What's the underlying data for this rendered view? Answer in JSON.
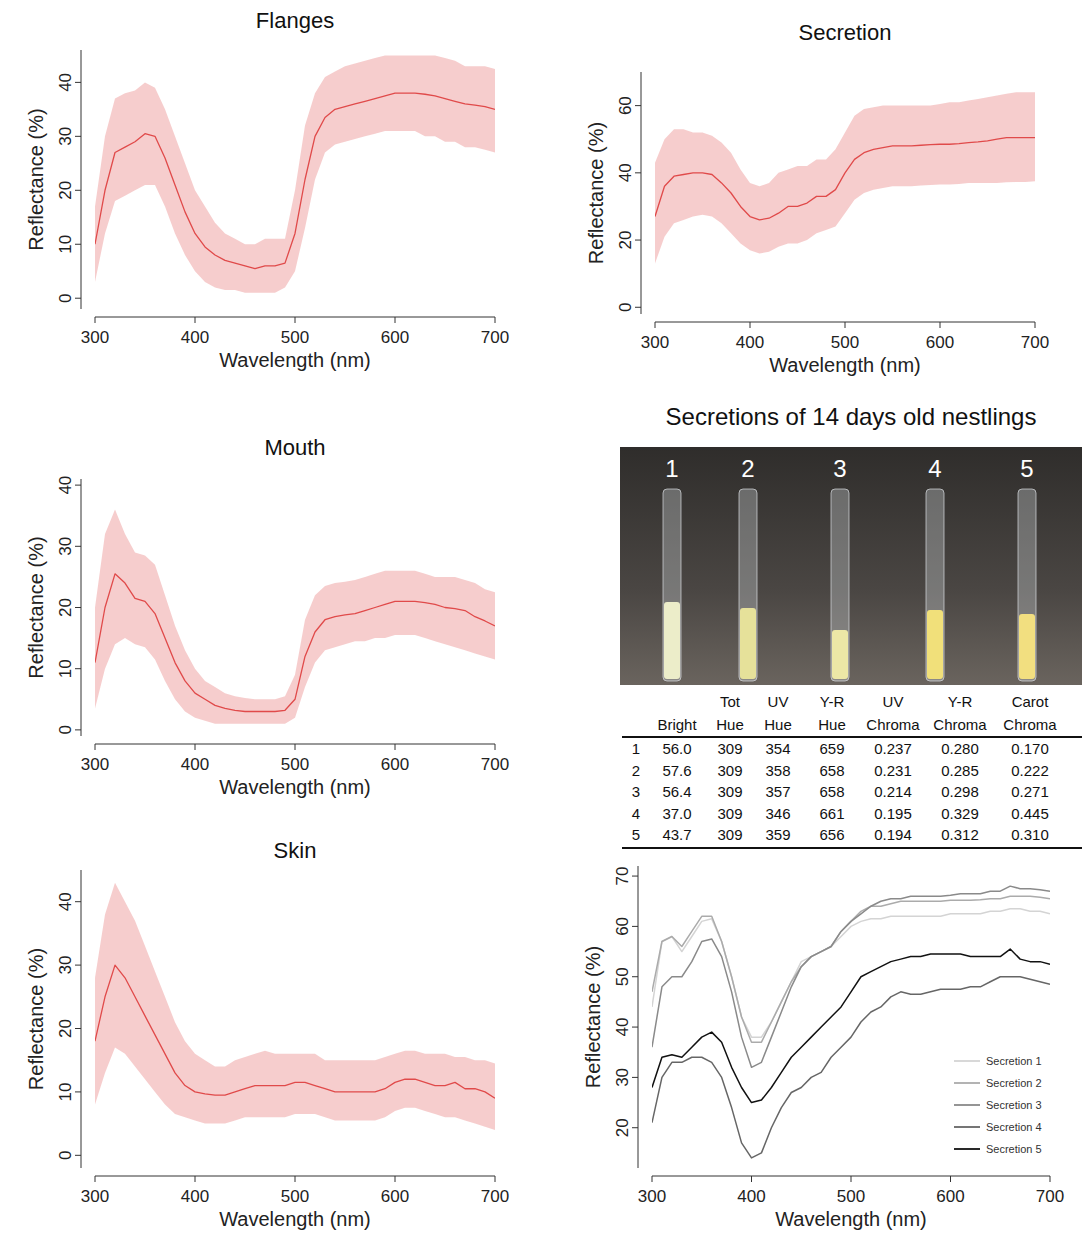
{
  "chart_data": [
    {
      "type": "line",
      "title": "Flanges",
      "x_label": "Wavelength (nm)",
      "y_label": "Reflectance (%)",
      "x": [
        300,
        310,
        320,
        330,
        340,
        350,
        360,
        370,
        380,
        390,
        400,
        410,
        420,
        430,
        440,
        450,
        460,
        470,
        480,
        490,
        500,
        510,
        520,
        530,
        540,
        550,
        560,
        570,
        580,
        590,
        600,
        610,
        620,
        630,
        640,
        650,
        660,
        670,
        680,
        690,
        700
      ],
      "xlim": [
        300,
        700
      ],
      "xticks": [
        300,
        400,
        500,
        600,
        700
      ],
      "ylim": [
        -2,
        46
      ],
      "yticks": [
        0,
        10,
        20,
        30,
        40
      ],
      "series": [
        {
          "color": "#e04a4a",
          "values": [
            10,
            20,
            27,
            28,
            29,
            30.5,
            30,
            26,
            21,
            16,
            12,
            9.5,
            8,
            7,
            6.5,
            6,
            5.5,
            6,
            6,
            6.5,
            12,
            22,
            30,
            33.5,
            35,
            35.5,
            36,
            36.5,
            37,
            37.5,
            38,
            38,
            38,
            37.8,
            37.5,
            37,
            36.5,
            36,
            35.8,
            35.5,
            35
          ],
          "upper": [
            17,
            30,
            37,
            38,
            38.5,
            40,
            39,
            35,
            30,
            25,
            20,
            17,
            14,
            12,
            11,
            10,
            10,
            11,
            11,
            11,
            20,
            32,
            38,
            41,
            42,
            43,
            43.5,
            44,
            44.5,
            45,
            45,
            45,
            45,
            45,
            45,
            44.5,
            44,
            43,
            43,
            43,
            42.5
          ],
          "lower": [
            3,
            12,
            18,
            19,
            20,
            21,
            21,
            17,
            12,
            8,
            5,
            3,
            2,
            1.5,
            1.5,
            1,
            1,
            1,
            1,
            2,
            5,
            13,
            22,
            27,
            28.5,
            29,
            29.5,
            30,
            30.5,
            31,
            31,
            31,
            31,
            30,
            30,
            29,
            29,
            28,
            28,
            27.5,
            27
          ]
        }
      ]
    },
    {
      "type": "line",
      "title": "Secretion",
      "x_label": "Wavelength (nm)",
      "y_label": "Reflectance (%)",
      "x": [
        300,
        310,
        320,
        330,
        340,
        350,
        360,
        370,
        380,
        390,
        400,
        410,
        420,
        430,
        440,
        450,
        460,
        470,
        480,
        490,
        500,
        510,
        520,
        530,
        540,
        550,
        560,
        570,
        580,
        590,
        600,
        610,
        620,
        630,
        640,
        650,
        660,
        670,
        680,
        690,
        700
      ],
      "xlim": [
        300,
        700
      ],
      "xticks": [
        300,
        400,
        500,
        600,
        700
      ],
      "ylim": [
        -2,
        70
      ],
      "yticks": [
        0,
        20,
        40,
        60
      ],
      "series": [
        {
          "color": "#e04a4a",
          "values": [
            27,
            36,
            39,
            39.5,
            40,
            40,
            39.5,
            37,
            34,
            30,
            27,
            26,
            26.5,
            28,
            30,
            30,
            31,
            33,
            33,
            35,
            40,
            44,
            46,
            47,
            47.5,
            48,
            48,
            48,
            48.2,
            48.4,
            48.5,
            48.5,
            48.7,
            49,
            49.2,
            49.5,
            50,
            50.5,
            50.5,
            50.5,
            50.5
          ],
          "upper": [
            43,
            50,
            53,
            53,
            52,
            52,
            51,
            49,
            46,
            41,
            37,
            36,
            37,
            40,
            41,
            42,
            42,
            44,
            44,
            47,
            52,
            57,
            59,
            59.5,
            60,
            60,
            60,
            60,
            60,
            60,
            60.5,
            61,
            61,
            61.5,
            62,
            62.5,
            63,
            63.5,
            64,
            64,
            64
          ],
          "lower": [
            13,
            21,
            25,
            26,
            27,
            27.5,
            27,
            25,
            22,
            19,
            17,
            16,
            16.5,
            18,
            19,
            19,
            20,
            22,
            23,
            24,
            28,
            32,
            34,
            35,
            35.5,
            36,
            36,
            36,
            36.2,
            36.4,
            36.5,
            36.5,
            36.7,
            37,
            37,
            37,
            37,
            37.2,
            37.3,
            37.3,
            37.5
          ]
        }
      ]
    },
    {
      "type": "line",
      "title": "Mouth",
      "x_label": "Wavelength (nm)",
      "y_label": "Reflectance (%)",
      "x": [
        300,
        310,
        320,
        330,
        340,
        350,
        360,
        370,
        380,
        390,
        400,
        410,
        420,
        430,
        440,
        450,
        460,
        470,
        480,
        490,
        500,
        510,
        520,
        530,
        540,
        550,
        560,
        570,
        580,
        590,
        600,
        610,
        620,
        630,
        640,
        650,
        660,
        670,
        680,
        690,
        700
      ],
      "xlim": [
        300,
        700
      ],
      "xticks": [
        300,
        400,
        500,
        600,
        700
      ],
      "ylim": [
        -1,
        41
      ],
      "yticks": [
        0,
        10,
        20,
        30,
        40
      ],
      "series": [
        {
          "color": "#e04a4a",
          "values": [
            11,
            20,
            25.5,
            24,
            21.5,
            21,
            19,
            15,
            11,
            8,
            6,
            5,
            4,
            3.5,
            3.2,
            3,
            3,
            3,
            3,
            3.2,
            5,
            12,
            16,
            18,
            18.5,
            18.8,
            19,
            19.5,
            20,
            20.5,
            21,
            21,
            21,
            20.8,
            20.5,
            20,
            19.8,
            19.5,
            18.5,
            17.8,
            17
          ],
          "upper": [
            20,
            32,
            36,
            32,
            29,
            28.5,
            27,
            22,
            17,
            13,
            10,
            8,
            7,
            6,
            5.5,
            5.2,
            5,
            5,
            5,
            5.5,
            9,
            18,
            22,
            23.5,
            24,
            24.2,
            24.5,
            25,
            25.5,
            26,
            26,
            26,
            26,
            25.5,
            25,
            25,
            25,
            24.5,
            24,
            23,
            22.5
          ],
          "lower": [
            3.5,
            10,
            14,
            15,
            14,
            13.5,
            11.5,
            8,
            5,
            3,
            2,
            1.5,
            1,
            1,
            1,
            1,
            1,
            1,
            1,
            1,
            2,
            7,
            11,
            13,
            13.5,
            14,
            14.5,
            14.5,
            15,
            15,
            15.5,
            15.5,
            15.5,
            15,
            14.5,
            14,
            13.5,
            13,
            12.5,
            12,
            11.5
          ]
        }
      ]
    },
    {
      "type": "line",
      "title": "Skin",
      "x_label": "Wavelength (nm)",
      "y_label": "Reflectance (%)",
      "x": [
        300,
        310,
        320,
        330,
        340,
        350,
        360,
        370,
        380,
        390,
        400,
        410,
        420,
        430,
        440,
        450,
        460,
        470,
        480,
        490,
        500,
        510,
        520,
        530,
        540,
        550,
        560,
        570,
        580,
        590,
        600,
        610,
        620,
        630,
        640,
        650,
        660,
        670,
        680,
        690,
        700
      ],
      "xlim": [
        300,
        700
      ],
      "xticks": [
        300,
        400,
        500,
        600,
        700
      ],
      "ylim": [
        -2,
        45
      ],
      "yticks": [
        0,
        10,
        20,
        30,
        40
      ],
      "series": [
        {
          "color": "#e04a4a",
          "values": [
            18,
            25,
            30,
            28,
            25,
            22,
            19,
            16,
            13,
            11,
            10,
            9.7,
            9.5,
            9.5,
            10,
            10.5,
            11,
            11,
            11,
            11,
            11.5,
            11.5,
            11,
            10.5,
            10,
            10,
            10,
            10,
            10,
            10.5,
            11.5,
            12,
            12,
            11.5,
            11,
            11,
            11.5,
            10.5,
            10.5,
            10,
            9
          ],
          "upper": [
            28,
            38,
            43,
            40,
            37,
            33,
            29,
            25,
            21,
            18,
            16,
            15,
            14,
            14,
            15,
            15.5,
            16,
            16.5,
            16,
            16,
            16,
            16,
            16,
            15,
            15,
            15,
            15,
            15,
            15,
            15.5,
            16,
            16.5,
            16.5,
            16,
            16,
            16,
            15.5,
            15.5,
            15,
            15,
            14.5
          ],
          "lower": [
            8,
            13,
            17,
            16,
            14,
            12,
            10,
            8,
            6.5,
            6,
            5.5,
            5,
            5,
            5,
            5.5,
            6,
            6,
            6,
            6,
            6,
            6.5,
            6.5,
            6.5,
            6,
            5.5,
            5.5,
            5.5,
            5.5,
            5.5,
            6,
            7,
            7.5,
            7.5,
            7,
            6.5,
            6,
            6,
            5.5,
            5,
            4.5,
            4
          ]
        }
      ]
    },
    {
      "type": "line",
      "x_label": "Wavelength (nm)",
      "y_label": "Reflectance (%)",
      "legend": "bottom-right",
      "x": [
        300,
        310,
        320,
        330,
        340,
        350,
        360,
        370,
        380,
        390,
        400,
        410,
        420,
        430,
        440,
        450,
        460,
        470,
        480,
        490,
        500,
        510,
        520,
        530,
        540,
        550,
        560,
        570,
        580,
        590,
        600,
        610,
        620,
        630,
        640,
        650,
        660,
        670,
        680,
        690,
        700
      ],
      "xlim": [
        300,
        700
      ],
      "xticks": [
        300,
        400,
        500,
        600,
        700
      ],
      "ylim": [
        12,
        72
      ],
      "yticks": [
        20,
        30,
        40,
        50,
        60,
        70
      ],
      "series": [
        {
          "name": "Secretion 1",
          "color": "#d4d4d4",
          "values": [
            44,
            57,
            58,
            55,
            58,
            61,
            61.5,
            57,
            50,
            42,
            38,
            38,
            41,
            45,
            49,
            53,
            54,
            55,
            56,
            58,
            60,
            61,
            61.5,
            61.5,
            62,
            62,
            62,
            62,
            62,
            62,
            62.5,
            62.5,
            62.5,
            62.5,
            63,
            63,
            63.5,
            63.5,
            63,
            63,
            62.5
          ]
        },
        {
          "name": "Secretion 2",
          "color": "#ababab",
          "values": [
            47,
            57,
            58,
            56,
            59,
            62,
            62,
            57,
            50,
            42,
            37,
            37,
            41,
            45,
            49,
            52,
            54,
            55,
            56,
            59,
            61,
            63,
            64,
            64,
            64.5,
            65,
            65,
            65,
            65,
            65,
            65.2,
            65.2,
            65.2,
            65.3,
            65.5,
            65.5,
            66,
            66,
            66,
            65.8,
            65.5
          ]
        },
        {
          "name": "Secretion 3",
          "color": "#8a8a8a",
          "values": [
            36,
            48,
            50,
            50,
            53,
            57,
            57.5,
            54,
            47,
            38,
            32,
            33,
            38,
            43,
            48,
            52,
            54,
            55,
            56,
            59,
            61,
            62.5,
            64,
            65,
            65.5,
            65.5,
            66,
            66,
            66,
            66,
            66.2,
            66.5,
            66.5,
            66.5,
            67,
            67,
            68,
            67.5,
            67.5,
            67.3,
            67
          ]
        },
        {
          "name": "Secretion 4",
          "color": "#666666",
          "values": [
            21,
            30,
            33,
            33,
            34,
            34,
            33,
            30,
            24,
            17,
            14,
            15,
            20,
            24,
            27,
            28,
            30,
            31,
            34,
            36,
            38,
            41,
            43,
            44,
            46,
            47,
            46.5,
            46.5,
            47,
            47.5,
            47.5,
            47.5,
            48,
            48,
            49,
            50,
            50,
            50,
            49.5,
            49,
            48.5
          ]
        },
        {
          "name": "Secretion 5",
          "color": "#111111",
          "values": [
            28,
            34,
            34.5,
            34,
            36,
            38,
            39,
            37,
            32,
            28,
            25,
            25.5,
            28,
            31,
            34,
            36,
            38,
            40,
            42,
            44,
            47,
            50,
            51,
            52,
            53,
            53.5,
            54,
            54,
            54.5,
            54.5,
            54.5,
            54.5,
            54,
            54,
            54,
            54,
            55.5,
            53.5,
            53,
            53,
            52.5
          ]
        }
      ]
    }
  ],
  "photo": {
    "title": "Secretions of 14 days old nestlings",
    "labels": [
      "1",
      "2",
      "3",
      "4",
      "5"
    ]
  },
  "table": {
    "columns": [
      "Bright",
      "Tot Hue",
      "UV Hue",
      "Y-R Hue",
      "UV Chroma",
      "Y-R Chroma",
      "Carot Chroma"
    ],
    "rows": [
      {
        "label": "1",
        "cells": [
          "56.0",
          "309",
          "354",
          "659",
          "0.237",
          "0.280",
          "0.170"
        ]
      },
      {
        "label": "2",
        "cells": [
          "57.6",
          "309",
          "358",
          "658",
          "0.231",
          "0.285",
          "0.222"
        ]
      },
      {
        "label": "3",
        "cells": [
          "56.4",
          "309",
          "357",
          "658",
          "0.214",
          "0.298",
          "0.271"
        ]
      },
      {
        "label": "4",
        "cells": [
          "37.0",
          "309",
          "346",
          "661",
          "0.195",
          "0.329",
          "0.445"
        ]
      },
      {
        "label": "5",
        "cells": [
          "43.7",
          "309",
          "359",
          "656",
          "0.194",
          "0.312",
          "0.310"
        ]
      }
    ]
  }
}
